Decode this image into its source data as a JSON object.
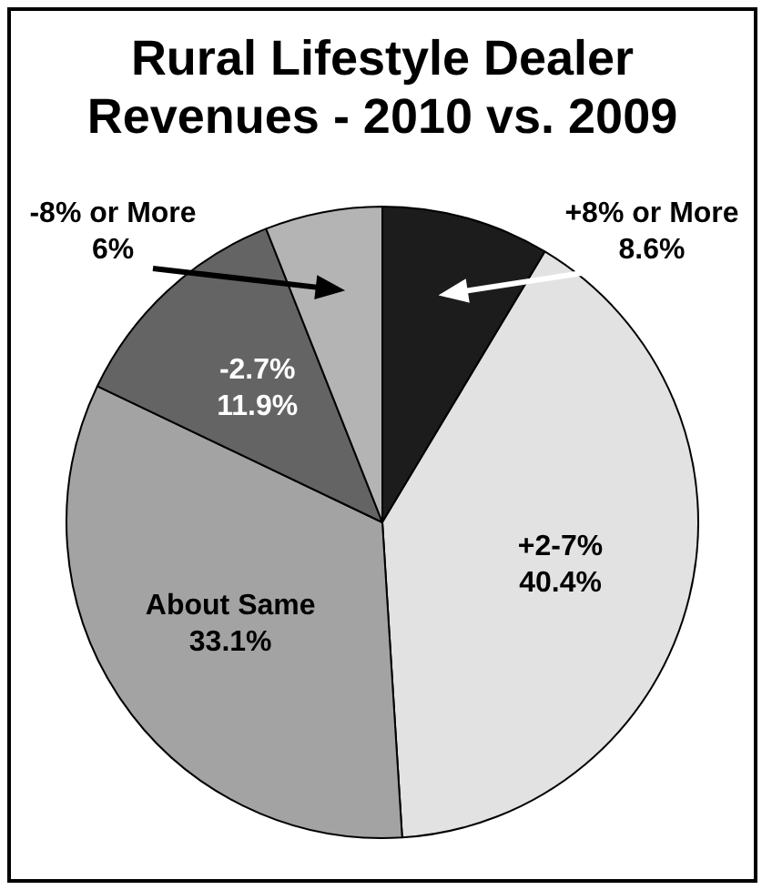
{
  "chart_data": {
    "type": "pie",
    "title": "Rural Lifestyle Dealer Revenues - 2010 vs. 2009",
    "categories": [
      "+8% or More",
      "+2-7%",
      "About Same",
      "-2.7%",
      "-8% or More"
    ],
    "values": [
      8.6,
      40.4,
      33.1,
      11.9,
      6
    ],
    "colors": [
      "#1c1c1c",
      "#e2e2e2",
      "#a3a3a3",
      "#646464",
      "#b4b4b4"
    ],
    "value_labels": [
      "8.6%",
      "40.4%",
      "33.1%",
      "11.9%",
      "6%"
    ],
    "legend": false
  }
}
